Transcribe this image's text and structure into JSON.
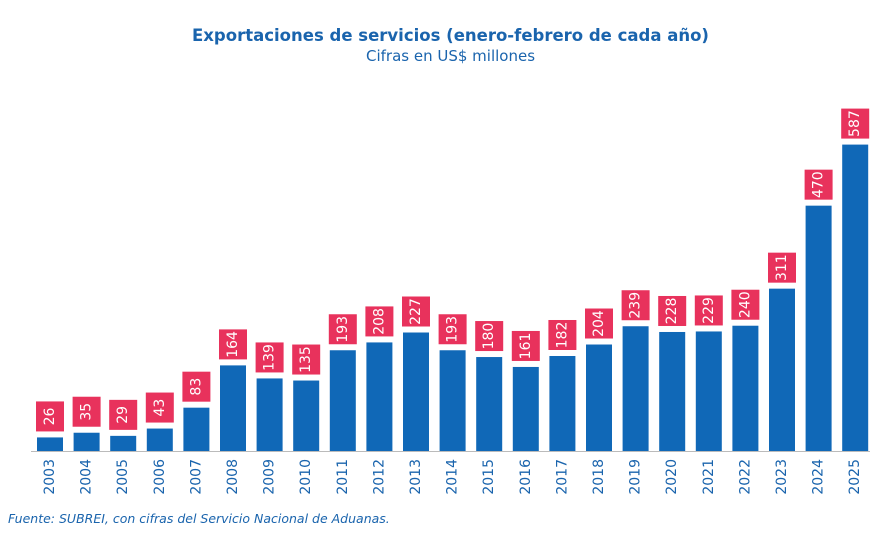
{
  "chart_data": {
    "type": "bar",
    "title": "Exportaciones de servicios (enero-febrero de cada año)",
    "subtitle": "Cifras en US$ millones",
    "categories": [
      "2003",
      "2004",
      "2005",
      "2006",
      "2007",
      "2008",
      "2009",
      "2010",
      "2011",
      "2012",
      "2013",
      "2014",
      "2015",
      "2016",
      "2017",
      "2018",
      "2019",
      "2020",
      "2021",
      "2022",
      "2023",
      "2024",
      "2025"
    ],
    "values": [
      26,
      35,
      29,
      43,
      83,
      164,
      139,
      135,
      193,
      208,
      227,
      193,
      180,
      161,
      182,
      204,
      239,
      228,
      229,
      240,
      311,
      470,
      587
    ],
    "xlabel": "",
    "ylabel": "",
    "ylim": [
      0,
      600
    ],
    "grid": false,
    "legend": "none",
    "data_labels": true,
    "x_tick_rotation": "vertical"
  },
  "colors": {
    "bar": "#1068b7",
    "label_box": "#e8325c",
    "label_text": "#ffffff",
    "axis": "#bbbbbb",
    "text": "#1a64ad"
  },
  "source": "Fuente: SUBREI, con cifras del Servicio Nacional de Aduanas."
}
